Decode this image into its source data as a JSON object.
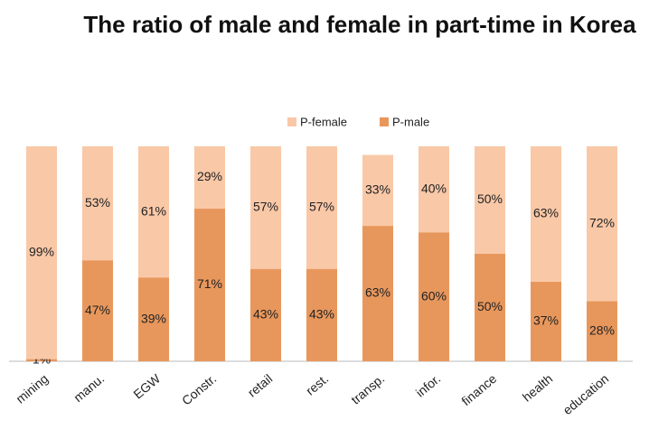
{
  "chart_data": {
    "type": "stacked_bar",
    "title": "The ratio of male and female in part-time in Korea",
    "categories": [
      "mining",
      "manu.",
      "EGW",
      "Constr.",
      "retail",
      "rest.",
      "transp.",
      "infor.",
      "finance",
      "health",
      "education"
    ],
    "series": [
      {
        "name": "P-male",
        "color": "#e8975c",
        "values": [
          1,
          47,
          39,
          71,
          43,
          43,
          63,
          60,
          50,
          37,
          28
        ],
        "value_labels": [
          "1%",
          "47%",
          "39%",
          "71%",
          "43%",
          "43%",
          "63%",
          "60%",
          "50%",
          "37%",
          "28%"
        ]
      },
      {
        "name": "P-female",
        "color": "#f9c8a7",
        "values": [
          99,
          53,
          61,
          29,
          57,
          57,
          33,
          40,
          50,
          63,
          72
        ],
        "value_labels": [
          "99%",
          "53%",
          "61%",
          "29%",
          "57%",
          "57%",
          "33%",
          "40%",
          "50%",
          "63%",
          "72%"
        ]
      }
    ],
    "legend_order": [
      "P-female",
      "P-male"
    ]
  }
}
